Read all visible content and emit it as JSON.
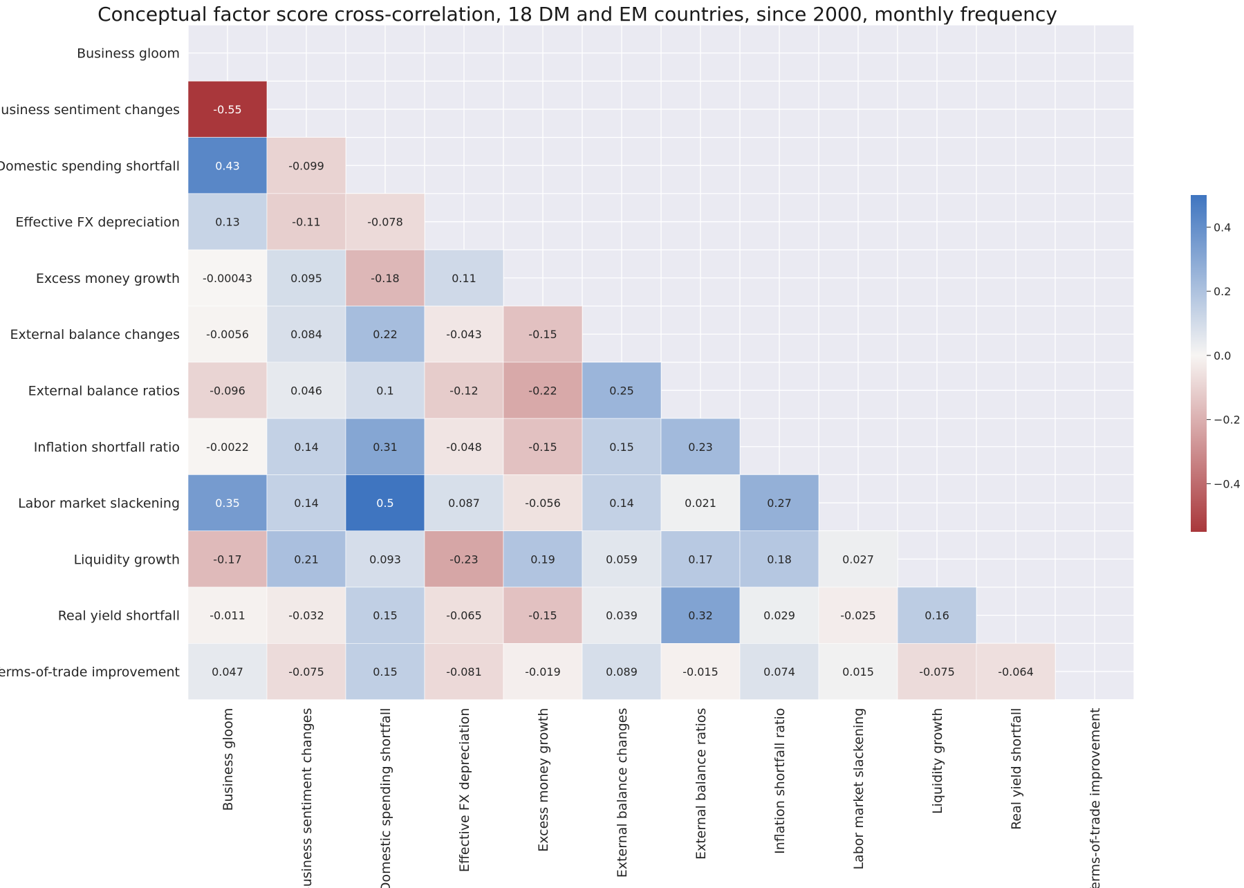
{
  "chart_data": {
    "type": "heatmap",
    "title": "Conceptual factor score cross-correlation, 18 DM and EM countries, since 2000, monthly frequency",
    "mask": "upper-triangle-including-diagonal",
    "rows": [
      "Business gloom",
      "Business sentiment changes",
      "Domestic spending shortfall",
      "Effective FX depreciation",
      "Excess money growth",
      "External balance changes",
      "External balance ratios",
      "Inflation shortfall ratio",
      "Labor market slackening",
      "Liquidity growth",
      "Real yield shortfall",
      "Terms-of-trade improvement"
    ],
    "columns": [
      "Business gloom",
      "Business sentiment changes",
      "Domestic spending shortfall",
      "Effective FX depreciation",
      "Excess money growth",
      "External balance changes",
      "External balance ratios",
      "Inflation shortfall ratio",
      "Labor market slackening",
      "Liquidity growth",
      "Real yield shortfall",
      "Terms-of-trade improvement"
    ],
    "values": [
      [],
      [
        -0.55
      ],
      [
        0.43,
        -0.099
      ],
      [
        0.13,
        -0.11,
        -0.078
      ],
      [
        -0.00043,
        0.095,
        -0.18,
        0.11
      ],
      [
        -0.0056,
        0.084,
        0.22,
        -0.043,
        -0.15
      ],
      [
        -0.096,
        0.046,
        0.1,
        -0.12,
        -0.22,
        0.25
      ],
      [
        -0.0022,
        0.14,
        0.31,
        -0.048,
        -0.15,
        0.15,
        0.23
      ],
      [
        0.35,
        0.14,
        0.5,
        0.087,
        -0.056,
        0.14,
        0.021,
        0.27
      ],
      [
        -0.17,
        0.21,
        0.093,
        -0.23,
        0.19,
        0.059,
        0.17,
        0.18,
        0.027
      ],
      [
        -0.011,
        -0.032,
        0.15,
        -0.065,
        -0.15,
        0.039,
        0.32,
        0.029,
        -0.025,
        0.16
      ],
      [
        0.047,
        -0.075,
        0.15,
        -0.081,
        -0.019,
        0.089,
        -0.015,
        0.074,
        0.015,
        -0.075,
        -0.064
      ]
    ],
    "value_labels": [
      [],
      [
        "-0.55"
      ],
      [
        "0.43",
        "-0.099"
      ],
      [
        "0.13",
        "-0.11",
        "-0.078"
      ],
      [
        "-0.00043",
        "0.095",
        "-0.18",
        "0.11"
      ],
      [
        "-0.0056",
        "0.084",
        "0.22",
        "-0.043",
        "-0.15"
      ],
      [
        "-0.096",
        "0.046",
        "0.1",
        "-0.12",
        "-0.22",
        "0.25"
      ],
      [
        "-0.0022",
        "0.14",
        "0.31",
        "-0.048",
        "-0.15",
        "0.15",
        "0.23"
      ],
      [
        "0.35",
        "0.14",
        "0.5",
        "0.087",
        "-0.056",
        "0.14",
        "0.021",
        "0.27"
      ],
      [
        "-0.17",
        "0.21",
        "0.093",
        "-0.23",
        "0.19",
        "0.059",
        "0.17",
        "0.18",
        "0.027"
      ],
      [
        "-0.011",
        "-0.032",
        "0.15",
        "-0.065",
        "-0.15",
        "0.039",
        "0.32",
        "0.029",
        "-0.025",
        "0.16"
      ],
      [
        "0.047",
        "-0.075",
        "0.15",
        "-0.081",
        "-0.019",
        "0.089",
        "-0.015",
        "0.074",
        "0.015",
        "-0.075",
        "-0.064"
      ]
    ],
    "colorbar": {
      "min": -0.55,
      "max": 0.5,
      "ticks": [
        0.4,
        0.2,
        0.0,
        -0.2,
        -0.4
      ],
      "tick_labels": [
        "0.4",
        "0.2",
        "0.0",
        "−0.2",
        "−0.4"
      ],
      "placement": "right"
    },
    "colors": {
      "negative": "#a9373b",
      "center": "#f7f5f3",
      "positive": "#3f75c0",
      "background": "#eaeaf2",
      "grid": "#ffffff"
    },
    "grid": true
  }
}
